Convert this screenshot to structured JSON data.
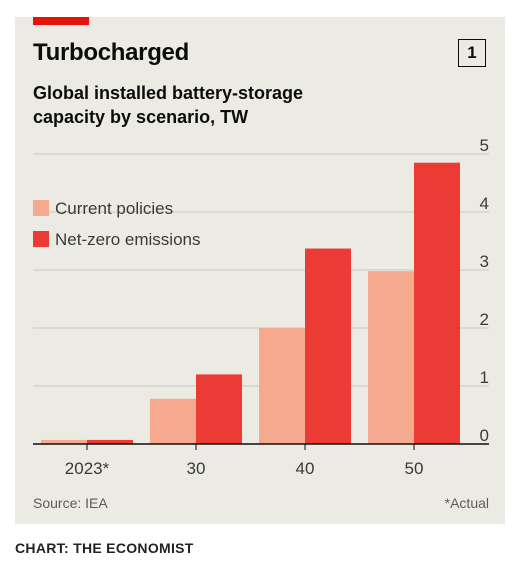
{
  "chart_data": {
    "type": "bar",
    "title": "Turbocharged",
    "subtitle": "Global installed battery-storage capacity by scenario, TW",
    "badge": "1",
    "categories": [
      "2023*",
      "30",
      "40",
      "50"
    ],
    "series": [
      {
        "name": "Current policies",
        "values": [
          0.07,
          0.78,
          2.0,
          2.98
        ],
        "color": "#f5a98e"
      },
      {
        "name": "Net-zero emissions",
        "values": [
          0.07,
          1.2,
          3.37,
          4.85
        ],
        "color": "#ec3a34"
      }
    ],
    "ylim": [
      0,
      5
    ],
    "yticks": [
      "0",
      "1",
      "2",
      "3",
      "4",
      "5"
    ],
    "y_axis_side": "right",
    "grid": true,
    "legend_position": "top-left",
    "source": "Source: IEA",
    "note": "*Actual"
  },
  "credit": "CHART: THE ECONOMIST"
}
